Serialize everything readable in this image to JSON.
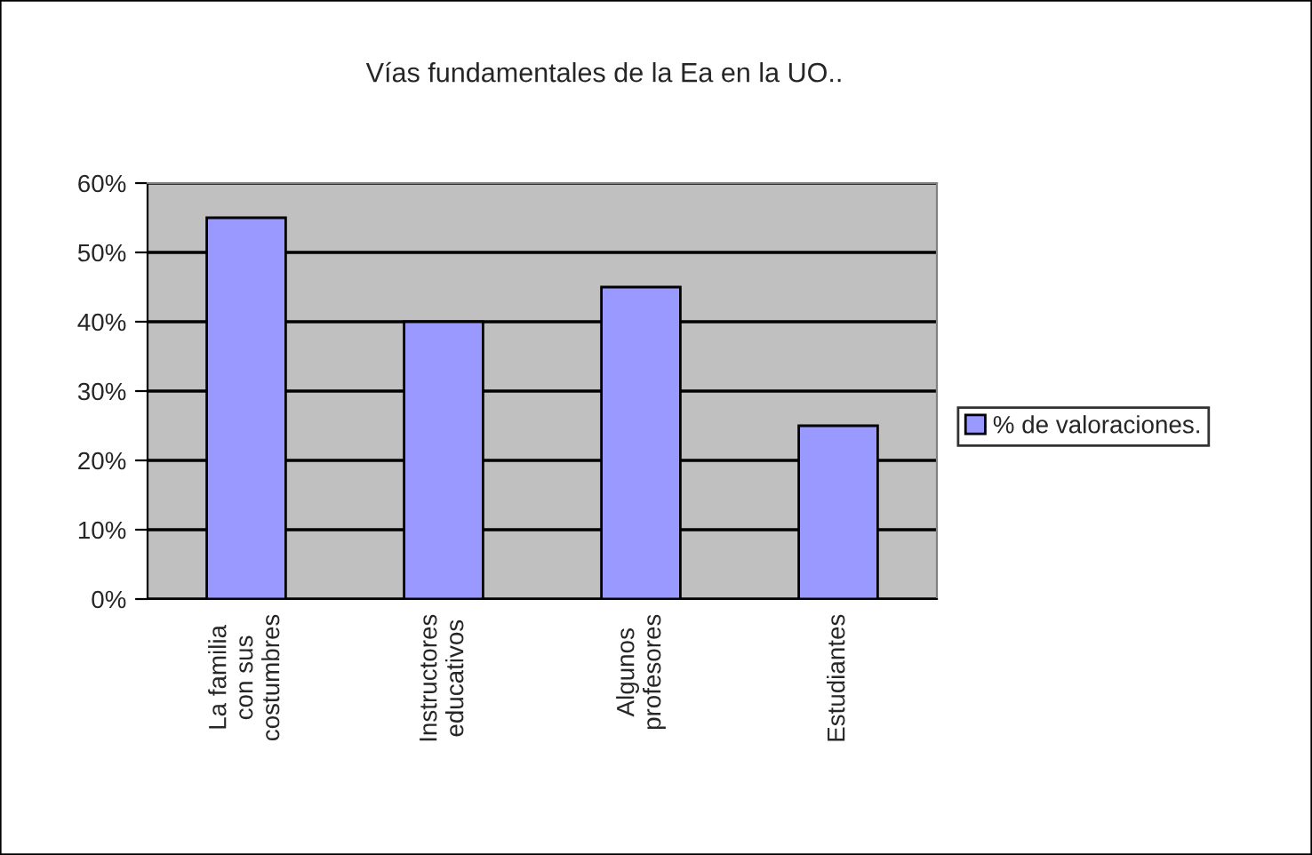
{
  "chart_data": {
    "type": "bar",
    "title": "Vías fundamentales de la Ea en la UO..",
    "categories": [
      "La familia\ncon sus\ncostumbres",
      "Instructores\neducativos",
      "Algunos\nprofesores",
      "Estudiantes"
    ],
    "series": [
      {
        "name": "% de valoraciones.",
        "color": "#9999ff",
        "values": [
          55,
          40,
          45,
          25
        ]
      }
    ],
    "ylim": [
      0,
      60
    ],
    "yticks": [
      {
        "value": 0,
        "label": "0%"
      },
      {
        "value": 10,
        "label": "10%"
      },
      {
        "value": 20,
        "label": "20%"
      },
      {
        "value": 30,
        "label": "30%"
      },
      {
        "value": 40,
        "label": "40%"
      },
      {
        "value": 50,
        "label": "50%"
      },
      {
        "value": 60,
        "label": "60%"
      }
    ],
    "grid": "y",
    "legend": "right"
  }
}
